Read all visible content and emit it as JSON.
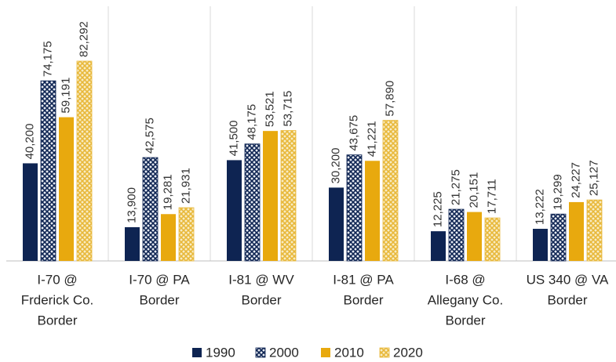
{
  "chart_data": {
    "type": "bar",
    "categories": [
      [
        "I-70 @",
        "Frderick Co.",
        "Border"
      ],
      [
        "I-70 @ PA",
        "Border"
      ],
      [
        "I-81 @ WV",
        "Border"
      ],
      [
        "I-81 @ PA",
        "Border"
      ],
      [
        "I-68 @",
        "Allegany Co.",
        "Border"
      ],
      [
        "US 340 @ VA",
        "Border"
      ]
    ],
    "series": [
      {
        "name": "1990",
        "color": "#0e2452",
        "pattern": "none",
        "values": [
          40200,
          13900,
          41500,
          30200,
          12225,
          13222
        ],
        "value_labels": [
          "40,200",
          "13,900",
          "41,500",
          "30,200",
          "12,225",
          "13,222"
        ]
      },
      {
        "name": "2000",
        "color": "#0e2452",
        "pattern": "crosshatch",
        "values": [
          74175,
          42575,
          48175,
          43675,
          21275,
          19299
        ],
        "value_labels": [
          "74,175",
          "42,575",
          "48,175",
          "43,675",
          "21,275",
          "19,299"
        ]
      },
      {
        "name": "2010",
        "color": "#e8a90e",
        "pattern": "none",
        "values": [
          59191,
          19281,
          53521,
          41221,
          20151,
          24227
        ],
        "value_labels": [
          "59,191",
          "19,281",
          "53,521",
          "41,221",
          "20,151",
          "24,227"
        ]
      },
      {
        "name": "2020",
        "color": "#e8b83a",
        "pattern": "crosshatch",
        "values": [
          82292,
          21931,
          53715,
          57890,
          17711,
          25127
        ],
        "value_labels": [
          "82,292",
          "21,931",
          "53,715",
          "57,890",
          "17,711",
          "25,127"
        ]
      }
    ],
    "legend": "bottom"
  }
}
